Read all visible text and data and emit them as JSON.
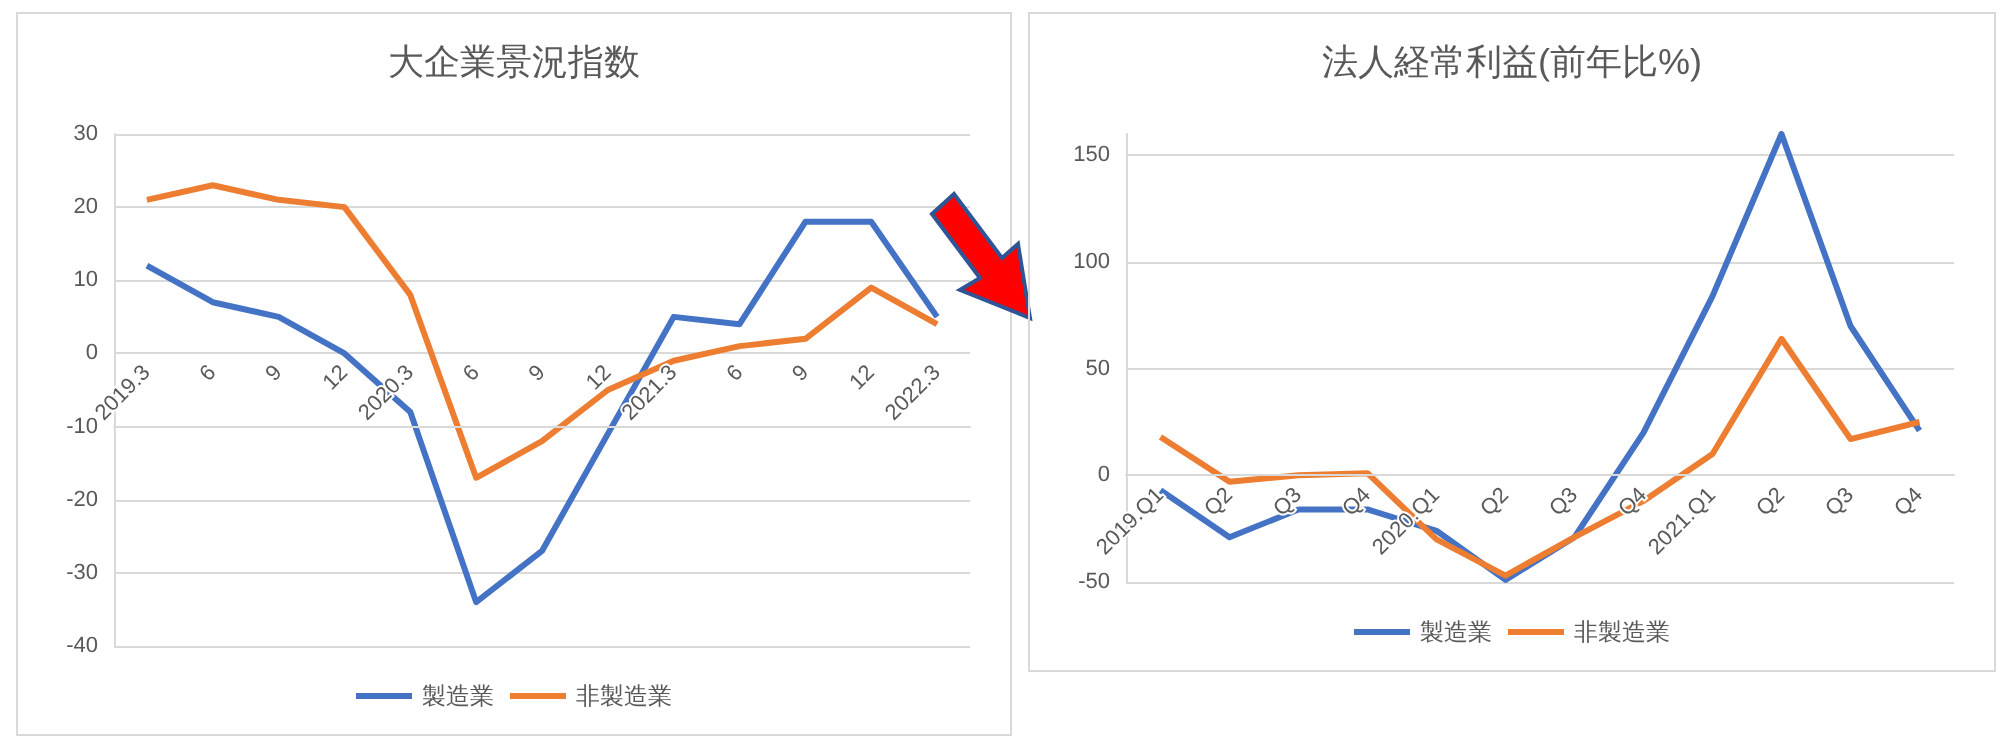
{
  "chart_data": [
    {
      "type": "line",
      "title": "大企業景況指数",
      "categories": [
        "2019.3",
        "6",
        "9",
        "12",
        "2020.3",
        "6",
        "9",
        "12",
        "2021.3",
        "6",
        "9",
        "12",
        "2022.3"
      ],
      "series": [
        {
          "name": "製造業",
          "color": "#4472c4",
          "values": [
            12,
            7,
            5,
            0,
            -8,
            -34,
            -27,
            -11,
            5,
            4,
            18,
            18,
            5
          ]
        },
        {
          "name": "非製造業",
          "color": "#ed7d31",
          "values": [
            21,
            23,
            21,
            20,
            8,
            -17,
            -12,
            -5,
            -1,
            1,
            2,
            9,
            4
          ]
        }
      ],
      "ylim": [
        -40,
        30
      ],
      "yticks": [
        -40,
        -30,
        -20,
        -10,
        0,
        10,
        20,
        30
      ],
      "grid": "y",
      "legend": "bottom",
      "marker": "none"
    },
    {
      "type": "line",
      "title": "法人経常利益(前年比%)",
      "categories": [
        "2019.Q1",
        "Q2",
        "Q3",
        "Q4",
        "2020.Q1",
        "Q2",
        "Q3",
        "Q4",
        "2021.Q1",
        "Q2",
        "Q3",
        "Q4"
      ],
      "series": [
        {
          "name": "製造業",
          "color": "#4472c4",
          "values": [
            -7,
            -29,
            -16,
            -16,
            -26,
            -49,
            -29,
            20,
            84,
            160,
            70,
            21
          ]
        },
        {
          "name": "非製造業",
          "color": "#ed7d31",
          "values": [
            18,
            -3,
            0,
            1,
            -30,
            -47,
            -29,
            -12,
            10,
            64,
            17,
            25
          ]
        }
      ],
      "ylim": [
        -50,
        160
      ],
      "yticks": [
        -50,
        0,
        50,
        100,
        150
      ],
      "grid": "y",
      "legend": "bottom",
      "marker": "none"
    }
  ]
}
